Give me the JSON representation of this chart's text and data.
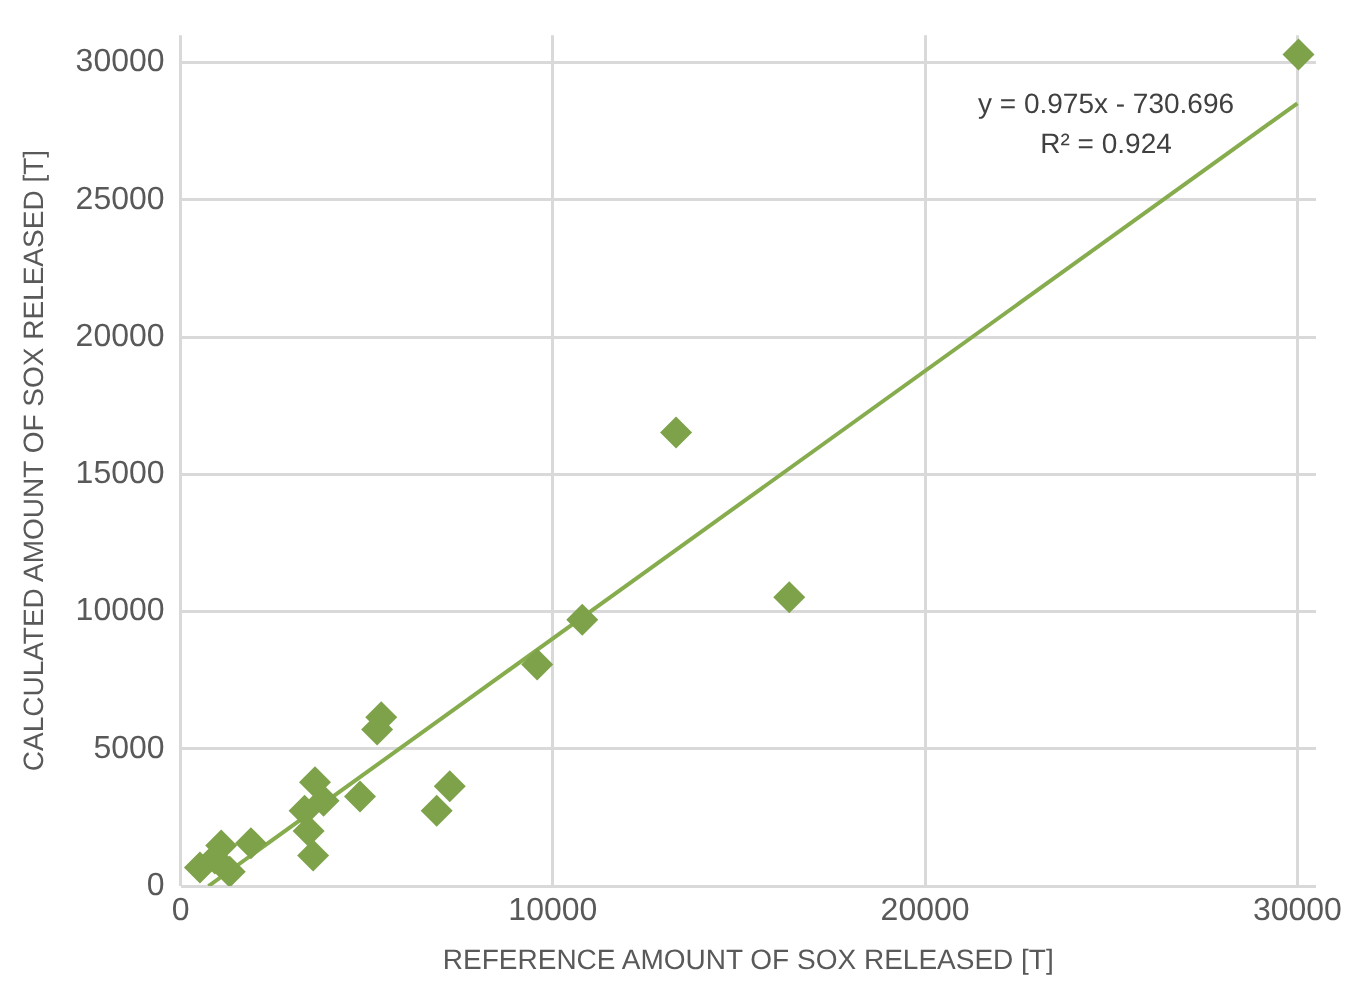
{
  "chart_data": {
    "type": "scatter",
    "xlabel": "REFERENCE AMOUNT OF SOX RELEASED [T]",
    "ylabel": "CALCULATED AMOUNT OF SOX RELEASED [T]",
    "xlim": [
      0,
      30500
    ],
    "xticks": [
      0,
      10000,
      20000,
      30000
    ],
    "ylim": [
      0,
      31000
    ],
    "yticks": [
      0,
      5000,
      10000,
      15000,
      20000,
      25000,
      30000
    ],
    "grid": true,
    "legend": false,
    "marker": "diamond",
    "annotations": [
      "y = 0.975x - 730.696",
      "R² = 0.924"
    ],
    "series": [
      {
        "color": "#7ea24a",
        "x": [
          30030,
          13310,
          16350,
          10790,
          9580,
          5280,
          5390,
          7230,
          6880,
          4820,
          3610,
          3840,
          3330,
          3440,
          3560,
          1890,
          1090,
          520,
          1320,
          920
        ],
        "values": [
          30300,
          16520,
          10520,
          9700,
          8070,
          5700,
          6150,
          3630,
          2740,
          3260,
          3780,
          3110,
          2740,
          2000,
          1110,
          1560,
          1480,
          670,
          520,
          1000
        ]
      },
      {
        "type": "line",
        "color": "#86ac4e",
        "marker": "none",
        "x": [
          750,
          30000
        ],
        "values": [
          0,
          28520
        ]
      }
    ]
  }
}
